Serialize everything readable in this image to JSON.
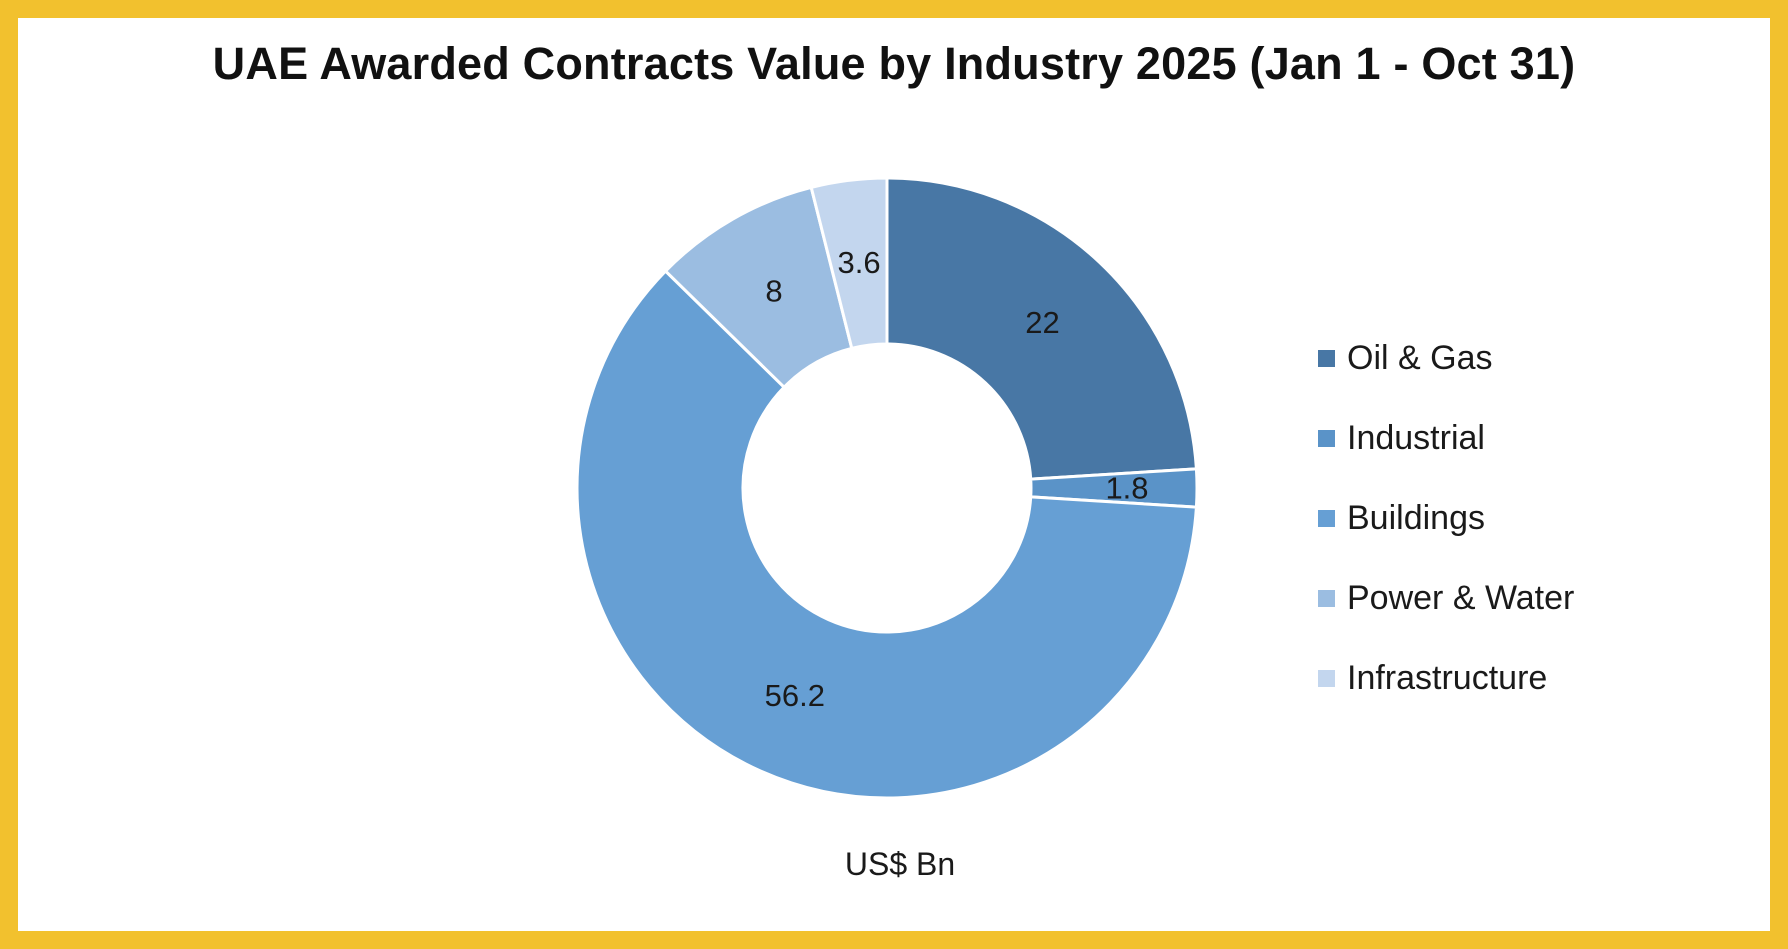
{
  "chart_data": {
    "type": "donut",
    "title": "UAE Awarded Contracts Value by Industry 2025 (Jan 1 - Oct 31)",
    "unit_label": "US$ Bn",
    "legend_position": "right",
    "categories": [
      "Oil & Gas",
      "Industrial",
      "Buildings",
      "Power & Water",
      "Infrastructure"
    ],
    "values": [
      22,
      1.8,
      56.2,
      8,
      3.6
    ],
    "data_labels": [
      "22",
      "1.8",
      "56.2",
      "8",
      "3.6"
    ],
    "colors": [
      "#4877A5",
      "#5A93C8",
      "#669FD4",
      "#9BBDE1",
      "#C3D6EE"
    ]
  }
}
